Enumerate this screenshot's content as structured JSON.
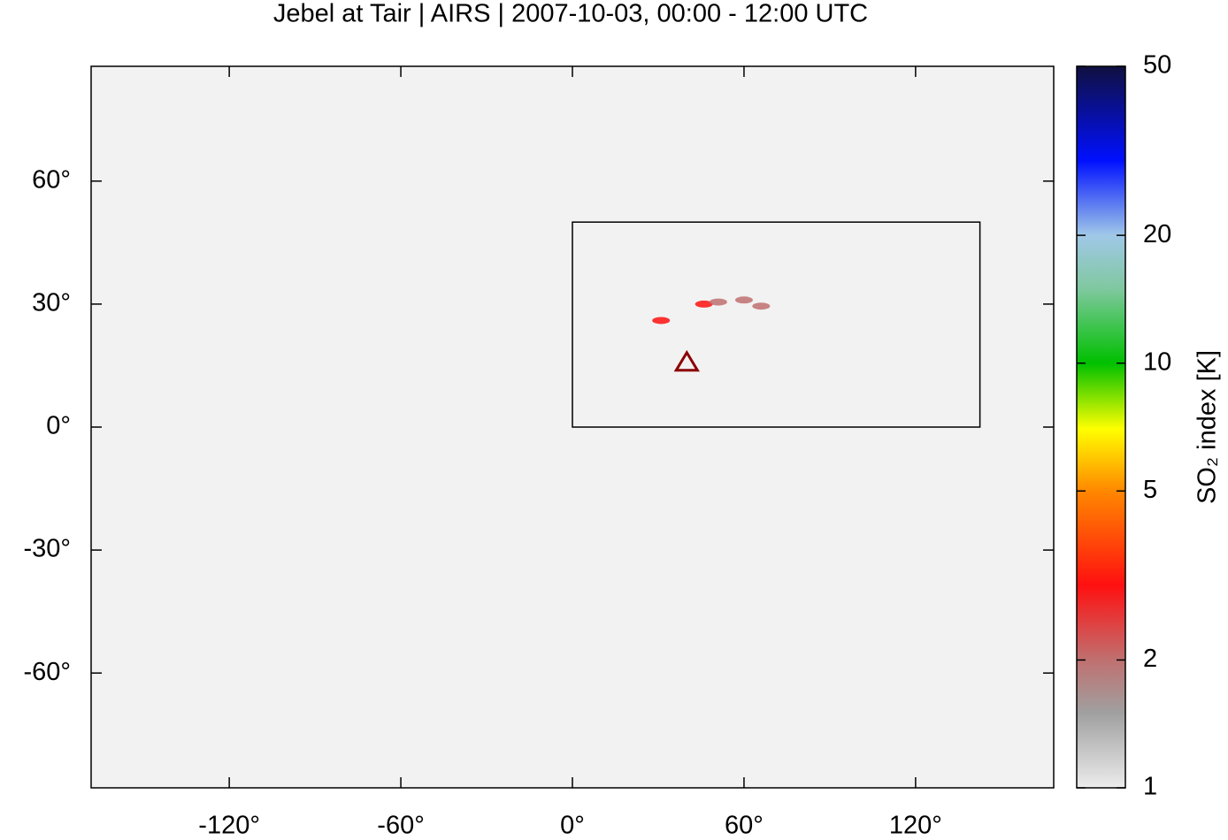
{
  "chart_data": {
    "type": "map",
    "title": "Jebel at Tair | AIRS | 2007-10-03, 00:00 - 12:00 UTC",
    "xlim": [
      -168.3,
      168.3
    ],
    "ylim": [
      -88,
      88
    ],
    "xticks": [
      {
        "value": -120,
        "label": "-120°"
      },
      {
        "value": -60,
        "label": "-60°"
      },
      {
        "value": 0,
        "label": "0°"
      },
      {
        "value": 60,
        "label": "60°"
      },
      {
        "value": 120,
        "label": "120°"
      }
    ],
    "yticks": [
      {
        "value": 60,
        "label": "60°"
      },
      {
        "value": 30,
        "label": "30°"
      },
      {
        "value": 0,
        "label": "0°"
      },
      {
        "value": -30,
        "label": "-30°"
      },
      {
        "value": -60,
        "label": "-60°"
      }
    ],
    "box": {
      "lon": [
        0,
        142.5
      ],
      "lat": [
        0,
        50
      ]
    },
    "volcano": {
      "lon": 40,
      "lat": 15.8,
      "color": "#8b0000"
    },
    "plumes": {
      "lon": [
        31,
        46,
        51,
        60,
        66
      ],
      "lat": [
        26,
        30,
        30.5,
        31,
        29.5
      ],
      "values": [
        3.5,
        4.5,
        2.5,
        2.2,
        2.1
      ]
    },
    "colorbar": {
      "label": "SO₂ index [K]",
      "log": true,
      "lim": [
        1,
        50
      ],
      "ticks": [
        1,
        2,
        5,
        10,
        20,
        50
      ],
      "colormap": [
        {
          "value": 1,
          "color": "#ececec"
        },
        {
          "value": 1.5,
          "color": "#a0a0a0"
        },
        {
          "value": 2,
          "color": "#c07070"
        },
        {
          "value": 3,
          "color": "#ff1010"
        },
        {
          "value": 5,
          "color": "#ff8800"
        },
        {
          "value": 7,
          "color": "#ffff00"
        },
        {
          "value": 10,
          "color": "#00c000"
        },
        {
          "value": 15,
          "color": "#80c8a0"
        },
        {
          "value": 20,
          "color": "#a0c8e8"
        },
        {
          "value": 30,
          "color": "#0010ff"
        },
        {
          "value": 50,
          "color": "#101040"
        }
      ]
    }
  }
}
